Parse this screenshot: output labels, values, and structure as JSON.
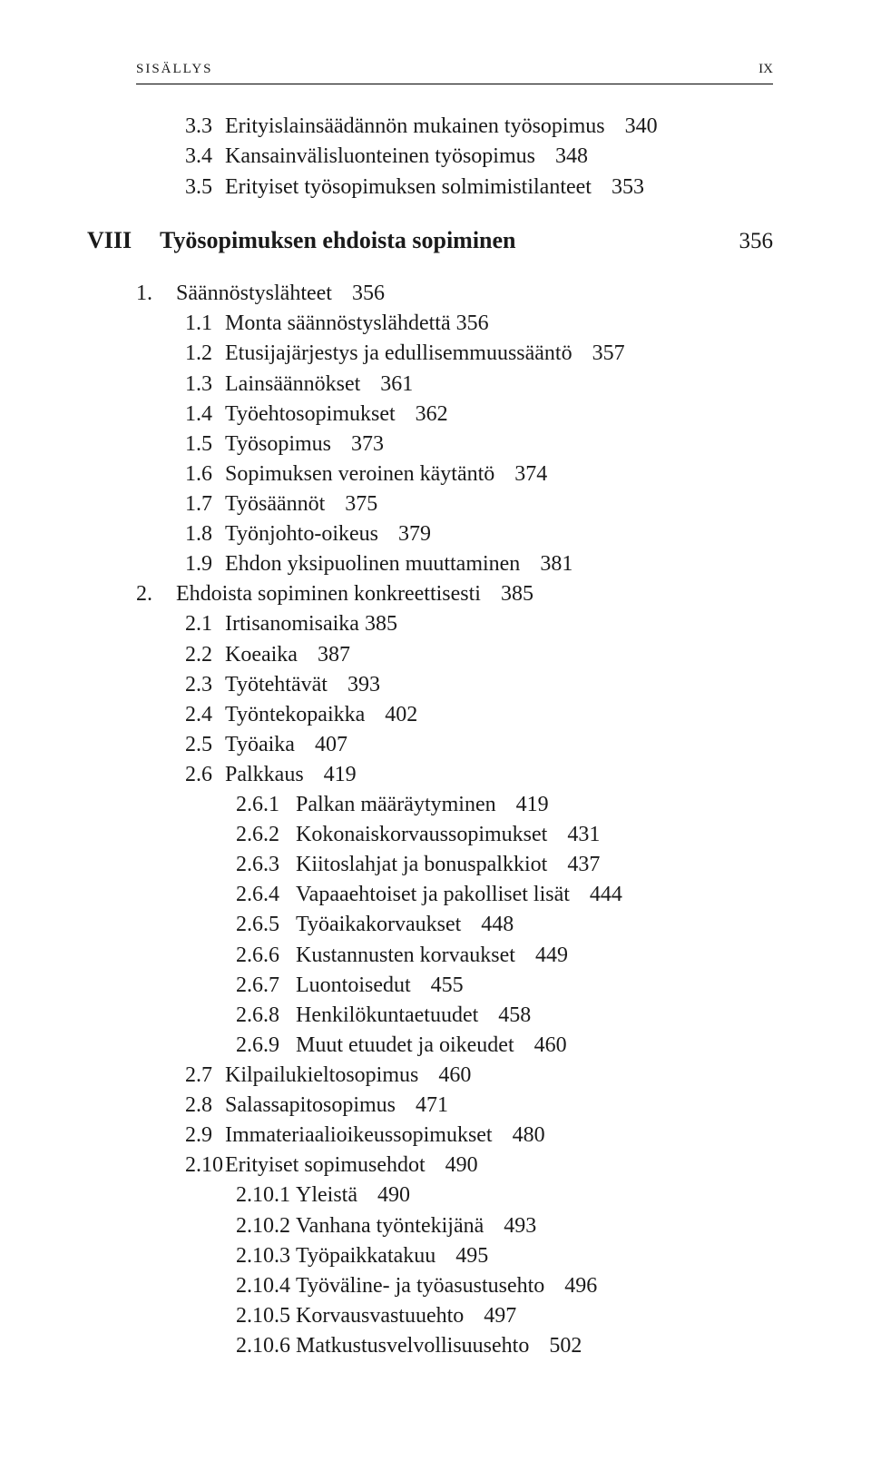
{
  "header": {
    "left": "sisällys",
    "right": "ix"
  },
  "pre": [
    {
      "lvl": 2,
      "num": "3.3",
      "title": "Erityislainsäädännön mukainen työsopimus",
      "pg": "340"
    },
    {
      "lvl": 2,
      "num": "3.4",
      "title": "Kansainvälisluonteinen työsopimus",
      "pg": "348"
    },
    {
      "lvl": 2,
      "num": "3.5",
      "title": "Erityiset työsopimuksen solmimistilanteet",
      "pg": "353"
    }
  ],
  "chapter": {
    "roman": "VIII",
    "title": "Työsopimuksen ehdoista sopiminen",
    "pg": "356"
  },
  "post": [
    {
      "lvl": 1,
      "num": "1.",
      "title": "Säännöstyslähteet",
      "pg": "356"
    },
    {
      "lvl": 2,
      "num": "1.1",
      "title": "Monta säännöstyslähdettä 356",
      "pg": ""
    },
    {
      "lvl": 2,
      "num": "1.2",
      "title": "Etusijajärjestys ja edullisemmuussääntö",
      "pg": "357"
    },
    {
      "lvl": 2,
      "num": "1.3",
      "title": "Lainsäännökset",
      "pg": "361"
    },
    {
      "lvl": 2,
      "num": "1.4",
      "title": "Työehtosopimukset",
      "pg": "362"
    },
    {
      "lvl": 2,
      "num": "1.5",
      "title": "Työsopimus",
      "pg": "373"
    },
    {
      "lvl": 2,
      "num": "1.6",
      "title": "Sopimuksen veroinen käytäntö",
      "pg": "374"
    },
    {
      "lvl": 2,
      "num": "1.7",
      "title": "Työsäännöt",
      "pg": "375"
    },
    {
      "lvl": 2,
      "num": "1.8",
      "title": "Työnjohto-oikeus",
      "pg": "379"
    },
    {
      "lvl": 2,
      "num": "1.9",
      "title": "Ehdon yksipuolinen muuttaminen",
      "pg": "381"
    },
    {
      "lvl": 1,
      "num": "2.",
      "title": "Ehdoista sopiminen konkreettisesti",
      "pg": "385"
    },
    {
      "lvl": 2,
      "num": "2.1",
      "title": "Irtisanomisaika 385",
      "pg": ""
    },
    {
      "lvl": 2,
      "num": "2.2",
      "title": "Koeaika",
      "pg": "387"
    },
    {
      "lvl": 2,
      "num": "2.3",
      "title": "Työtehtävät",
      "pg": "393"
    },
    {
      "lvl": 2,
      "num": "2.4",
      "title": "Työntekopaikka",
      "pg": "402"
    },
    {
      "lvl": 2,
      "num": "2.5",
      "title": "Työaika",
      "pg": "407"
    },
    {
      "lvl": 2,
      "num": "2.6",
      "title": "Palkkaus",
      "pg": "419"
    },
    {
      "lvl": 3,
      "num": "2.6.1",
      "title": "Palkan määräytyminen",
      "pg": "419"
    },
    {
      "lvl": 3,
      "num": "2.6.2",
      "title": "Kokonaiskorvaussopimukset",
      "pg": "431"
    },
    {
      "lvl": 3,
      "num": "2.6.3",
      "title": "Kiitoslahjat ja bonuspalkkiot",
      "pg": "437"
    },
    {
      "lvl": 3,
      "num": "2.6.4",
      "title": "Vapaaehtoiset ja pakolliset lisät",
      "pg": "444"
    },
    {
      "lvl": 3,
      "num": "2.6.5",
      "title": "Työaikakorvaukset",
      "pg": "448"
    },
    {
      "lvl": 3,
      "num": "2.6.6",
      "title": "Kustannusten korvaukset",
      "pg": "449"
    },
    {
      "lvl": 3,
      "num": "2.6.7",
      "title": "Luontoisedut",
      "pg": "455"
    },
    {
      "lvl": 3,
      "num": "2.6.8",
      "title": "Henkilökuntaetuudet",
      "pg": "458"
    },
    {
      "lvl": 3,
      "num": "2.6.9",
      "title": "Muut etuudet ja oikeudet",
      "pg": "460"
    },
    {
      "lvl": 2,
      "num": "2.7",
      "title": "Kilpailukieltosopimus",
      "pg": "460"
    },
    {
      "lvl": 2,
      "num": "2.8",
      "title": "Salassapitosopimus",
      "pg": "471"
    },
    {
      "lvl": 2,
      "num": "2.9",
      "title": "Immateriaalioikeussopimukset",
      "pg": "480"
    },
    {
      "lvl": 2,
      "num": "2.10",
      "title": "Erityiset sopimusehdot",
      "pg": "490"
    },
    {
      "lvl": 3,
      "num": "2.10.1",
      "title": "Yleistä",
      "pg": "490"
    },
    {
      "lvl": 3,
      "num": "2.10.2",
      "title": "Vanhana työntekijänä",
      "pg": "493"
    },
    {
      "lvl": 3,
      "num": "2.10.3",
      "title": "Työpaikkatakuu",
      "pg": "495"
    },
    {
      "lvl": 3,
      "num": "2.10.4",
      "title": "Työväline- ja työasustusehto",
      "pg": "496"
    },
    {
      "lvl": 3,
      "num": "2.10.5",
      "title": "Korvausvastuuehto",
      "pg": "497"
    },
    {
      "lvl": 3,
      "num": "2.10.6",
      "title": "Matkustusvelvollisuusehto",
      "pg": "502"
    }
  ]
}
